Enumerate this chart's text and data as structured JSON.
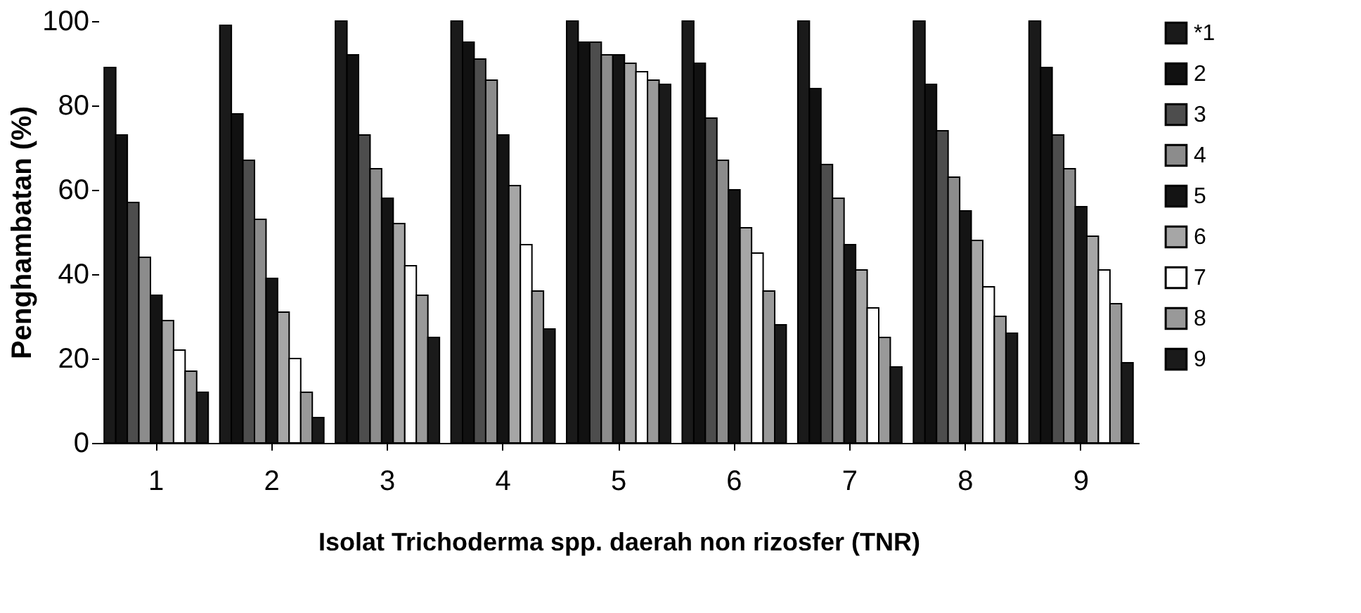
{
  "chart_data": {
    "type": "bar",
    "xlabel": "Isolat Trichoderma spp. daerah non rizosfer (TNR)",
    "ylabel": "Penghambatan (%)",
    "categories": [
      "1",
      "2",
      "3",
      "4",
      "5",
      "6",
      "7",
      "8",
      "9"
    ],
    "series": [
      {
        "name": "*1",
        "color": "#1a1a1a",
        "values": [
          89,
          99,
          100,
          100,
          100,
          100,
          100,
          100,
          100
        ]
      },
      {
        "name": "2",
        "color": "#111111",
        "values": [
          73,
          78,
          92,
          95,
          95,
          90,
          84,
          85,
          89
        ]
      },
      {
        "name": "3",
        "color": "#4d4d4d",
        "values": [
          57,
          67,
          73,
          91,
          95,
          77,
          66,
          74,
          73
        ]
      },
      {
        "name": "4",
        "color": "#8c8c8c",
        "values": [
          44,
          53,
          65,
          86,
          92,
          67,
          58,
          63,
          65
        ]
      },
      {
        "name": "5",
        "color": "#141414",
        "values": [
          35,
          39,
          58,
          73,
          92,
          60,
          47,
          55,
          56
        ]
      },
      {
        "name": "6",
        "color": "#a6a6a6",
        "values": [
          29,
          31,
          52,
          61,
          90,
          51,
          41,
          48,
          49
        ]
      },
      {
        "name": "7",
        "color": "#ffffff",
        "values": [
          22,
          20,
          42,
          47,
          88,
          45,
          32,
          37,
          41
        ]
      },
      {
        "name": "8",
        "color": "#999999",
        "values": [
          17,
          12,
          35,
          36,
          86,
          36,
          25,
          30,
          33
        ]
      },
      {
        "name": "9",
        "color": "#1a1a1a",
        "values": [
          12,
          6,
          25,
          27,
          85,
          28,
          18,
          26,
          19
        ]
      }
    ],
    "ylim": [
      0,
      100
    ],
    "yticks": [
      0,
      20,
      40,
      60,
      80,
      100
    ],
    "grid": false,
    "legend": "right"
  }
}
